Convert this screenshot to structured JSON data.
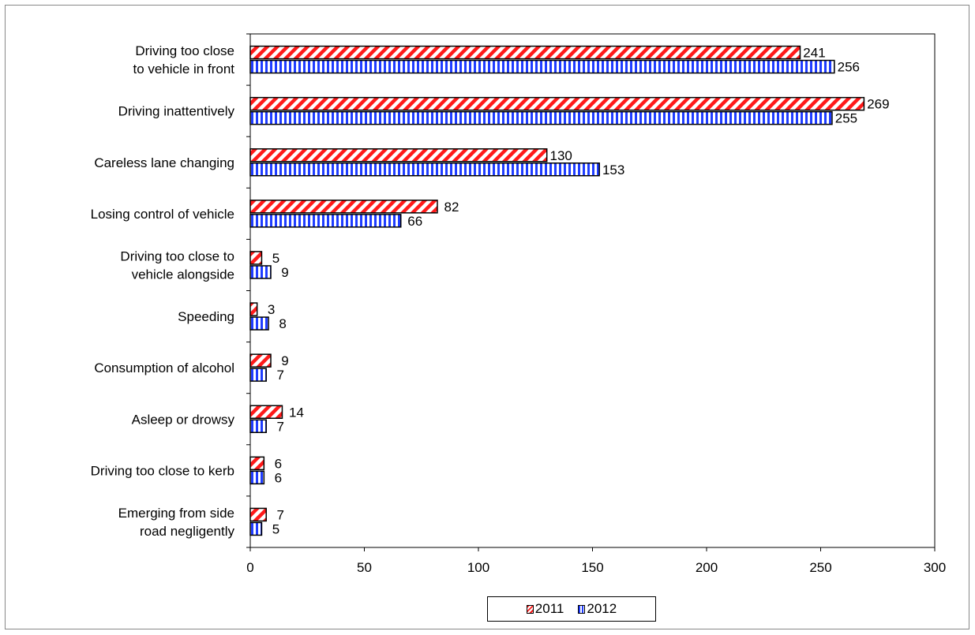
{
  "chart_data": {
    "type": "bar",
    "orientation": "horizontal",
    "title": "",
    "xlabel": "",
    "ylabel": "",
    "categories": [
      [
        "Driving too close",
        "to vehicle in front"
      ],
      [
        "Driving inattentively"
      ],
      [
        "Careless lane changing"
      ],
      [
        "Losing control of vehicle"
      ],
      [
        "Driving too close to",
        "vehicle alongside"
      ],
      [
        "Speeding"
      ],
      [
        "Consumption of alcohol"
      ],
      [
        "Asleep or drowsy"
      ],
      [
        "Driving too close to kerb"
      ],
      [
        "Emerging from side",
        "road negligently"
      ]
    ],
    "series": [
      {
        "name": "2011",
        "values": [
          241,
          269,
          130,
          82,
          5,
          3,
          9,
          14,
          6,
          7
        ],
        "color": "#ff1a1a",
        "pattern": "diagonal-stripes"
      },
      {
        "name": "2012",
        "values": [
          256,
          255,
          153,
          66,
          9,
          8,
          7,
          7,
          6,
          5
        ],
        "color": "#1f3dff",
        "pattern": "vertical-stripes"
      }
    ],
    "xlim": [
      0,
      300
    ],
    "xticks": [
      0,
      50,
      100,
      150,
      200,
      250,
      300
    ],
    "grid": false,
    "legend_position": "bottom"
  },
  "legend": {
    "item_2011": "2011",
    "item_2012": "2012"
  }
}
